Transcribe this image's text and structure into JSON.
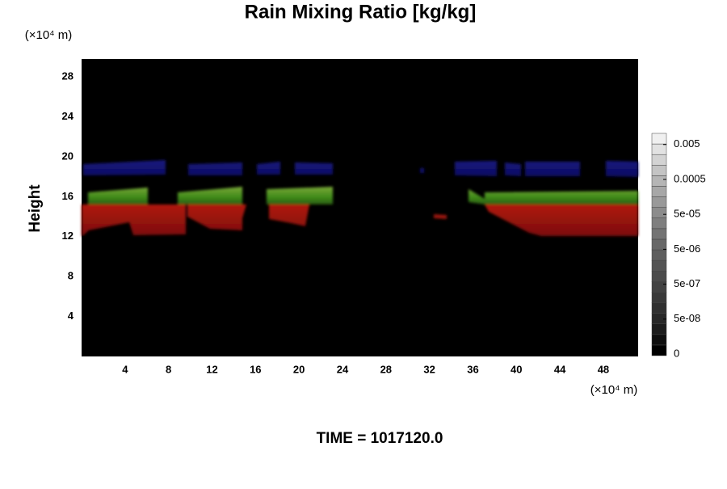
{
  "chart_data": {
    "type": "field",
    "title": "Rain Mixing Ratio [kg/kg]",
    "ylabel": "Height",
    "x_unit": "(×10⁴ m)",
    "y_unit": "(×10⁴ m)",
    "annotation": "TIME = 1017120.0",
    "xlim": [
      0,
      51.2
    ],
    "xticks": [
      4,
      8,
      12,
      16,
      20,
      24,
      28,
      32,
      36,
      40,
      44,
      48
    ],
    "ylim": [
      0,
      29.8
    ],
    "yticks": [
      4,
      8,
      12,
      16,
      20,
      24,
      28
    ],
    "colorbar": {
      "ticks": [
        0,
        {
          "value": 5e-08,
          "label": "5e-08"
        },
        {
          "value": 5e-07,
          "label": "5e-07"
        },
        {
          "value": 5e-06,
          "label": "5e-06"
        },
        {
          "value": 5e-05,
          "label": "5e-05"
        },
        0.0005,
        0.005
      ],
      "colors": [
        "#000000",
        "#0e0e0e",
        "#1c1c1c",
        "#272727",
        "#303030",
        "#393939",
        "#424242",
        "#4b4b4b",
        "#545454",
        "#5e5e5e",
        "#686868",
        "#737373",
        "#7f7f7f",
        "#8c8c8c",
        "#999999",
        "#a7a7a7",
        "#b5b5b5",
        "#c4c4c4",
        "#d3d3d3",
        "#e2e2e2",
        "#f0f0f0"
      ]
    }
  }
}
